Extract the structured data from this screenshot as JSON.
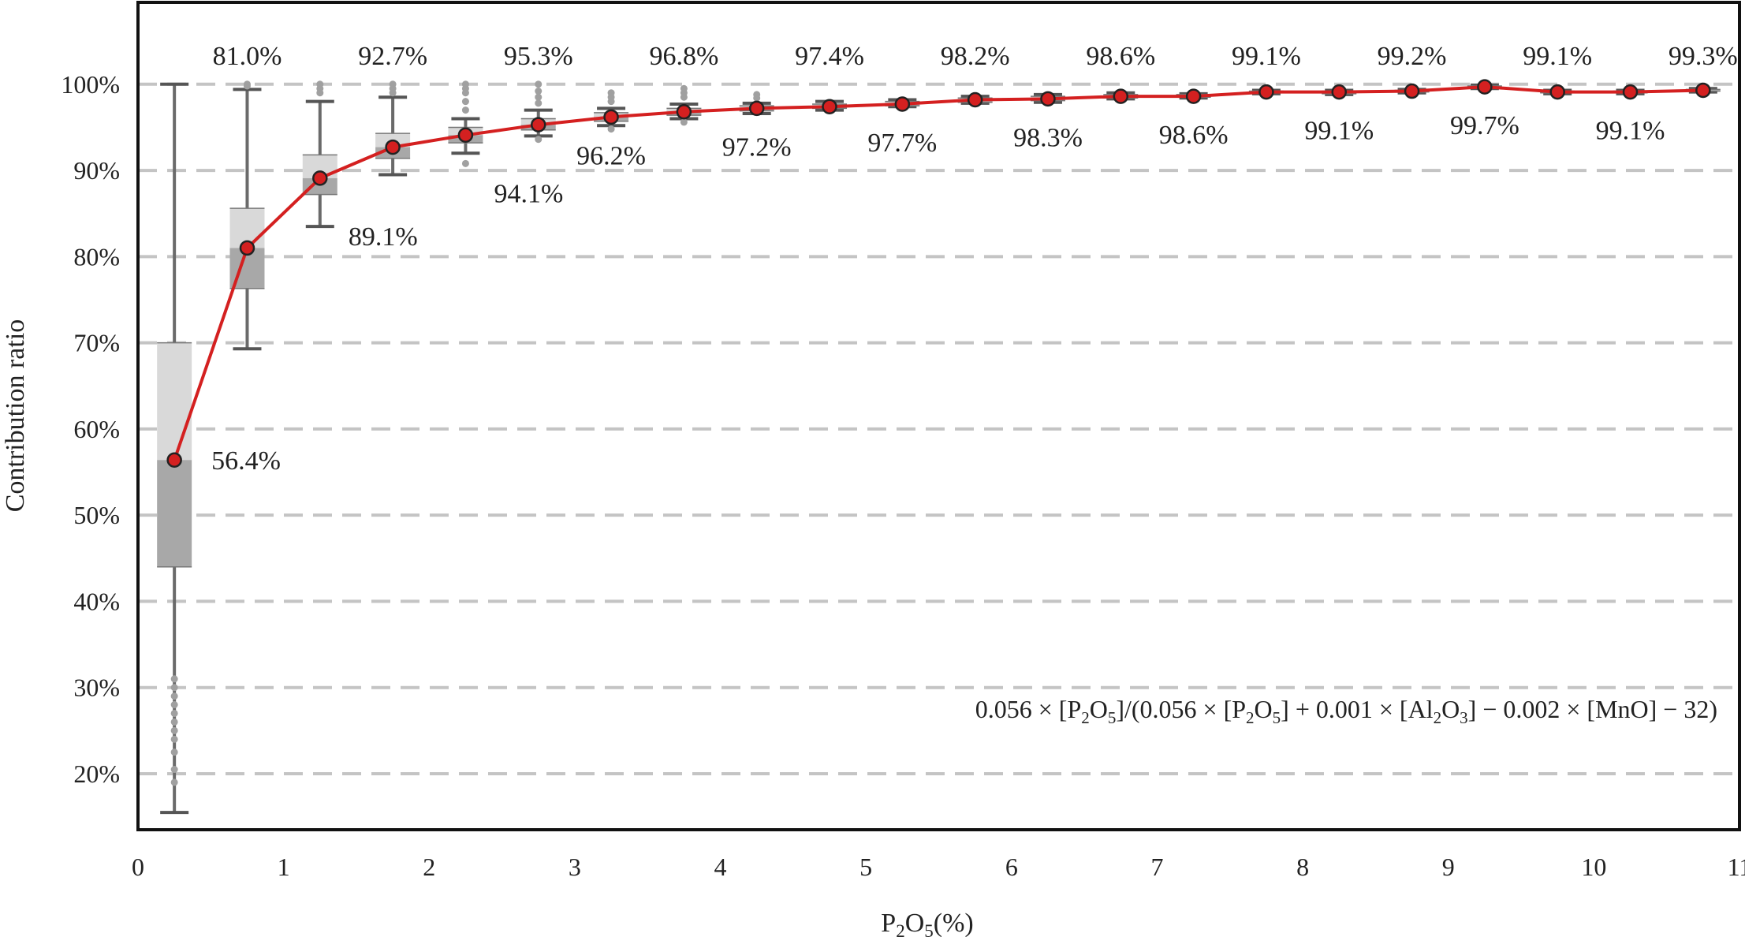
{
  "chart_data": {
    "type": "box_line",
    "xlabel": "P2O5(%)",
    "xlabel_parts": {
      "base": "P",
      "sub1": "2",
      "mid": "O",
      "sub2": "5",
      "tail": "(%)"
    },
    "ylabel": "Contribution ratio",
    "xlim": [
      0,
      11
    ],
    "ylim": [
      0.135,
      1.095
    ],
    "x_ticks": [
      0,
      1,
      2,
      3,
      4,
      5,
      6,
      7,
      8,
      9,
      10,
      11
    ],
    "x_tick_labels": [
      "0",
      "1",
      "2",
      "3",
      "4",
      "5",
      "6",
      "7",
      "8",
      "9",
      "10",
      "11"
    ],
    "y_ticks": [
      0.2,
      0.3,
      0.4,
      0.5,
      0.6,
      0.7,
      0.8,
      0.9,
      1.0
    ],
    "y_tick_labels": [
      "20%",
      "30%",
      "40%",
      "50%",
      "60%",
      "70%",
      "80%",
      "90%",
      "100%"
    ],
    "grid": "horizontal-dashed",
    "line_color": "#d42020",
    "marker_color": "#d42020",
    "formula": {
      "t1": "0.056 × [P",
      "s1": "2",
      "t2": "O",
      "s2": "5",
      "t3": "]/(0.056 × [P",
      "s3": "2",
      "t4": "O",
      "s4": "5",
      "t5": "] + 0.001 × [Al",
      "s5": "2",
      "t6": "O",
      "s6": "3",
      "t7": "] − 0.002 × [MnO] − 32)"
    },
    "points": [
      {
        "x": 0.25,
        "y": 0.564,
        "label": "56.4%",
        "label_pos": "right"
      },
      {
        "x": 0.75,
        "y": 0.81,
        "label": "81.0%",
        "label_pos": "top"
      },
      {
        "x": 1.25,
        "y": 0.891,
        "label": "89.1%",
        "label_pos": "below-right"
      },
      {
        "x": 1.75,
        "y": 0.927,
        "label": "92.7%",
        "label_pos": "top"
      },
      {
        "x": 2.25,
        "y": 0.941,
        "label": "94.1%",
        "label_pos": "below-right"
      },
      {
        "x": 2.75,
        "y": 0.953,
        "label": "95.3%",
        "label_pos": "top"
      },
      {
        "x": 3.25,
        "y": 0.962,
        "label": "96.2%",
        "label_pos": "below"
      },
      {
        "x": 3.75,
        "y": 0.968,
        "label": "96.8%",
        "label_pos": "top"
      },
      {
        "x": 4.25,
        "y": 0.972,
        "label": "97.2%",
        "label_pos": "below"
      },
      {
        "x": 4.75,
        "y": 0.974,
        "label": "97.4%",
        "label_pos": "top"
      },
      {
        "x": 5.25,
        "y": 0.977,
        "label": "97.7%",
        "label_pos": "below"
      },
      {
        "x": 5.75,
        "y": 0.982,
        "label": "98.2%",
        "label_pos": "top"
      },
      {
        "x": 6.25,
        "y": 0.983,
        "label": "98.3%",
        "label_pos": "below"
      },
      {
        "x": 6.75,
        "y": 0.986,
        "label": "98.6%",
        "label_pos": "top"
      },
      {
        "x": 7.25,
        "y": 0.986,
        "label": "98.6%",
        "label_pos": "below"
      },
      {
        "x": 7.75,
        "y": 0.991,
        "label": "99.1%",
        "label_pos": "top"
      },
      {
        "x": 8.25,
        "y": 0.991,
        "label": "99.1%",
        "label_pos": "below"
      },
      {
        "x": 8.75,
        "y": 0.992,
        "label": "99.2%",
        "label_pos": "top"
      },
      {
        "x": 9.25,
        "y": 0.997,
        "label": "99.7%",
        "label_pos": "below"
      },
      {
        "x": 9.75,
        "y": 0.991,
        "label": "99.1%",
        "label_pos": "top"
      },
      {
        "x": 10.25,
        "y": 0.991,
        "label": "99.1%",
        "label_pos": "below"
      },
      {
        "x": 10.75,
        "y": 0.993,
        "label": "99.3%",
        "label_pos": "top"
      }
    ],
    "boxes": [
      {
        "x": 0.25,
        "whislo": 0.155,
        "q1": 0.44,
        "med": 0.564,
        "q3": 0.7,
        "whishi": 1.0,
        "fliers": [
          0.19,
          0.205,
          0.225,
          0.24,
          0.25,
          0.26,
          0.27,
          0.28,
          0.29,
          0.3,
          0.31
        ]
      },
      {
        "x": 0.75,
        "whislo": 0.693,
        "q1": 0.763,
        "med": 0.81,
        "q3": 0.856,
        "whishi": 0.994,
        "fliers": [
          0.998,
          1.0
        ]
      },
      {
        "x": 1.25,
        "whislo": 0.835,
        "q1": 0.872,
        "med": 0.891,
        "q3": 0.918,
        "whishi": 0.98,
        "fliers": [
          0.99,
          0.995,
          1.0
        ]
      },
      {
        "x": 1.75,
        "whislo": 0.895,
        "q1": 0.914,
        "med": 0.927,
        "q3": 0.943,
        "whishi": 0.985,
        "fliers": [
          0.99,
          0.995,
          1.0
        ]
      },
      {
        "x": 2.25,
        "whislo": 0.92,
        "q1": 0.932,
        "med": 0.941,
        "q3": 0.95,
        "whishi": 0.96,
        "fliers": [
          0.908,
          0.97,
          0.98,
          0.99,
          0.995,
          1.0
        ]
      },
      {
        "x": 2.75,
        "whislo": 0.94,
        "q1": 0.947,
        "med": 0.953,
        "q3": 0.96,
        "whishi": 0.97,
        "fliers": [
          0.936,
          0.978,
          0.985,
          0.992,
          1.0
        ]
      },
      {
        "x": 3.25,
        "whislo": 0.952,
        "q1": 0.957,
        "med": 0.962,
        "q3": 0.967,
        "whishi": 0.972,
        "fliers": [
          0.948,
          0.98,
          0.985,
          0.99
        ]
      },
      {
        "x": 3.75,
        "whislo": 0.96,
        "q1": 0.964,
        "med": 0.968,
        "q3": 0.972,
        "whishi": 0.977,
        "fliers": [
          0.956,
          0.985,
          0.99,
          0.995
        ]
      },
      {
        "x": 4.25,
        "whislo": 0.966,
        "q1": 0.969,
        "med": 0.972,
        "q3": 0.975,
        "whishi": 0.978,
        "fliers": [
          0.984,
          0.988
        ]
      },
      {
        "x": 4.75,
        "whislo": 0.97,
        "q1": 0.972,
        "med": 0.974,
        "q3": 0.977,
        "whishi": 0.98,
        "fliers": []
      },
      {
        "x": 5.25,
        "whislo": 0.974,
        "q1": 0.975,
        "med": 0.977,
        "q3": 0.98,
        "whishi": 0.982,
        "fliers": []
      },
      {
        "x": 5.75,
        "whislo": 0.978,
        "q1": 0.979,
        "med": 0.982,
        "q3": 0.984,
        "whishi": 0.986,
        "fliers": []
      },
      {
        "x": 6.25,
        "whislo": 0.979,
        "q1": 0.981,
        "med": 0.983,
        "q3": 0.986,
        "whishi": 0.988,
        "fliers": []
      },
      {
        "x": 6.75,
        "whislo": 0.983,
        "q1": 0.984,
        "med": 0.986,
        "q3": 0.988,
        "whishi": 0.99,
        "fliers": []
      },
      {
        "x": 7.25,
        "whislo": 0.984,
        "q1": 0.985,
        "med": 0.986,
        "q3": 0.988,
        "whishi": 0.989,
        "fliers": []
      },
      {
        "x": 7.75,
        "whislo": 0.989,
        "q1": 0.99,
        "med": 0.991,
        "q3": 0.992,
        "whishi": 0.993,
        "fliers": []
      },
      {
        "x": 8.25,
        "whislo": 0.988,
        "q1": 0.989,
        "med": 0.991,
        "q3": 0.992,
        "whishi": 0.993,
        "fliers": []
      },
      {
        "x": 8.75,
        "whislo": 0.99,
        "q1": 0.991,
        "med": 0.992,
        "q3": 0.993,
        "whishi": 0.994,
        "fliers": []
      },
      {
        "x": 9.25,
        "whislo": 0.995,
        "q1": 0.996,
        "med": 0.997,
        "q3": 0.998,
        "whishi": 0.999,
        "fliers": []
      },
      {
        "x": 9.75,
        "whislo": 0.989,
        "q1": 0.99,
        "med": 0.991,
        "q3": 0.992,
        "whishi": 0.993,
        "fliers": []
      },
      {
        "x": 10.25,
        "whislo": 0.989,
        "q1": 0.99,
        "med": 0.991,
        "q3": 0.992,
        "whishi": 0.993,
        "fliers": []
      },
      {
        "x": 10.75,
        "whislo": 0.991,
        "q1": 0.992,
        "med": 0.993,
        "q3": 0.994,
        "whishi": 0.995,
        "fliers": []
      }
    ]
  }
}
